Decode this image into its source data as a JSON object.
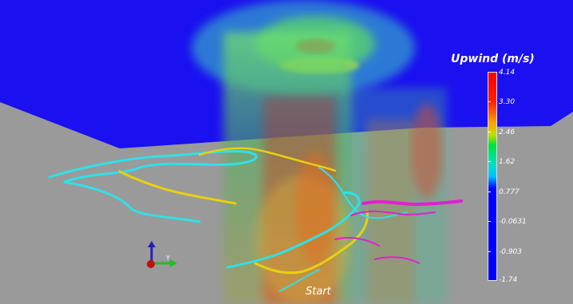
{
  "legend": {
    "title": "Upwind (m/s)",
    "ticks": [
      "4.14",
      "3.30",
      "2.46",
      "1.62",
      "0.777",
      "-0.0631",
      "-0.903",
      "-1.74"
    ],
    "gradient_colors": [
      "#ff0000",
      "#ffa000",
      "#00e040",
      "#00c0ff",
      "#0000ff"
    ]
  },
  "labels": {
    "start": "Start",
    "axis_y": "Y"
  },
  "colors": {
    "sky": "#1a10f0",
    "ground": "#9a9a9a",
    "streamline_cyan": "#30e0e8",
    "streamline_yellow": "#e8d010",
    "streamline_magenta": "#e020d0"
  },
  "icons": [
    "axes-triad-icon"
  ]
}
